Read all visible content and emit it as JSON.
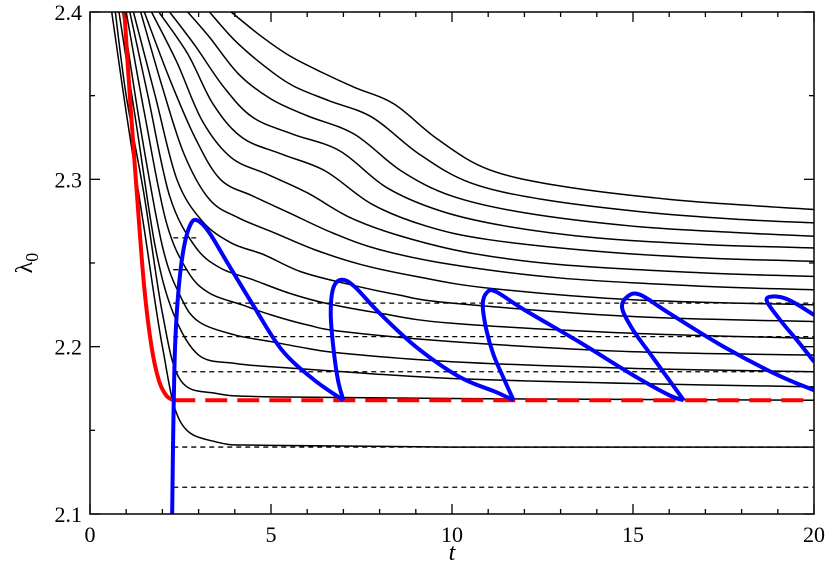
{
  "chart_data": {
    "type": "line",
    "title": "",
    "xlabel": "t",
    "ylabel_main": "λ",
    "ylabel_sub": "0",
    "xlim": [
      0,
      20
    ],
    "ylim": [
      2.1,
      2.4
    ],
    "xticks": [
      0,
      5,
      10,
      15,
      20
    ],
    "yticks": [
      2.1,
      2.2,
      2.3,
      2.4
    ],
    "xtick_labels": [
      "0",
      "5",
      "10",
      "15",
      "20"
    ],
    "ytick_labels": [
      "2.1",
      "2.2",
      "2.3",
      "2.4"
    ],
    "grid": false,
    "colors": {
      "black": "#000000",
      "red": "#ff0000",
      "blue": "#0000ff"
    },
    "black_curves": [
      {
        "points": [
          [
            0.6,
            2.4
          ],
          [
            1.0,
            2.34
          ],
          [
            1.5,
            2.27
          ],
          [
            2.0,
            2.2
          ],
          [
            2.5,
            2.155
          ],
          [
            3.5,
            2.143
          ],
          [
            5,
            2.141
          ],
          [
            10,
            2.14
          ],
          [
            20,
            2.14
          ]
        ]
      },
      {
        "points": [
          [
            0.7,
            2.4
          ],
          [
            1.0,
            2.35
          ],
          [
            1.5,
            2.29
          ],
          [
            2.0,
            2.22
          ],
          [
            2.5,
            2.18
          ],
          [
            3.5,
            2.172
          ],
          [
            5,
            2.17
          ],
          [
            10,
            2.169
          ],
          [
            20,
            2.168
          ]
        ]
      },
      {
        "points": [
          [
            0.8,
            2.4
          ],
          [
            1.3,
            2.33
          ],
          [
            1.8,
            2.26
          ],
          [
            2.3,
            2.22
          ],
          [
            3.0,
            2.195
          ],
          [
            4,
            2.19
          ],
          [
            5,
            2.188
          ],
          [
            7,
            2.185
          ],
          [
            10,
            2.181
          ],
          [
            15,
            2.178
          ],
          [
            20,
            2.176
          ]
        ]
      },
      {
        "points": [
          [
            0.9,
            2.4
          ],
          [
            1.4,
            2.33
          ],
          [
            2.0,
            2.26
          ],
          [
            2.5,
            2.23
          ],
          [
            3.0,
            2.215
          ],
          [
            4,
            2.207
          ],
          [
            5,
            2.203
          ],
          [
            6,
            2.199
          ],
          [
            7,
            2.196
          ],
          [
            10,
            2.191
          ],
          [
            15,
            2.187
          ],
          [
            20,
            2.185
          ]
        ]
      },
      {
        "points": [
          [
            1.0,
            2.4
          ],
          [
            1.5,
            2.34
          ],
          [
            2.1,
            2.275
          ],
          [
            2.7,
            2.245
          ],
          [
            3.3,
            2.232
          ],
          [
            4.2,
            2.225
          ],
          [
            5,
            2.219
          ],
          [
            6,
            2.213
          ],
          [
            7,
            2.209
          ],
          [
            10,
            2.203
          ],
          [
            15,
            2.197
          ],
          [
            20,
            2.195
          ]
        ]
      },
      {
        "points": [
          [
            1.1,
            2.4
          ],
          [
            1.6,
            2.35
          ],
          [
            2.2,
            2.29
          ],
          [
            2.9,
            2.26
          ],
          [
            3.6,
            2.247
          ],
          [
            4.5,
            2.24
          ],
          [
            5.5,
            2.232
          ],
          [
            6.5,
            2.226
          ],
          [
            8,
            2.22
          ],
          [
            10,
            2.214
          ],
          [
            15,
            2.208
          ],
          [
            20,
            2.205
          ]
        ]
      },
      {
        "points": [
          [
            1.2,
            2.4
          ],
          [
            1.8,
            2.35
          ],
          [
            2.4,
            2.3
          ],
          [
            3.1,
            2.275
          ],
          [
            3.9,
            2.262
          ],
          [
            4.8,
            2.255
          ],
          [
            5.8,
            2.245
          ],
          [
            7,
            2.238
          ],
          [
            8.5,
            2.231
          ],
          [
            10,
            2.226
          ],
          [
            15,
            2.218
          ],
          [
            20,
            2.215
          ]
        ]
      },
      {
        "points": [
          [
            1.4,
            2.4
          ],
          [
            2.0,
            2.355
          ],
          [
            2.6,
            2.315
          ],
          [
            3.3,
            2.288
          ],
          [
            4.1,
            2.277
          ],
          [
            5.1,
            2.268
          ],
          [
            6.2,
            2.258
          ],
          [
            7.5,
            2.249
          ],
          [
            9,
            2.242
          ],
          [
            11,
            2.235
          ],
          [
            15,
            2.228
          ],
          [
            20,
            2.225
          ]
        ]
      },
      {
        "points": [
          [
            1.5,
            2.4
          ],
          [
            2.2,
            2.36
          ],
          [
            2.9,
            2.325
          ],
          [
            3.6,
            2.3
          ],
          [
            4.5,
            2.29
          ],
          [
            5.5,
            2.28
          ],
          [
            6.7,
            2.268
          ],
          [
            8,
            2.258
          ],
          [
            10,
            2.249
          ],
          [
            13,
            2.241
          ],
          [
            17,
            2.236
          ],
          [
            20,
            2.234
          ]
        ]
      },
      {
        "points": [
          [
            1.7,
            2.4
          ],
          [
            2.4,
            2.37
          ],
          [
            3.1,
            2.335
          ],
          [
            3.9,
            2.313
          ],
          [
            4.9,
            2.303
          ],
          [
            6.0,
            2.292
          ],
          [
            7.2,
            2.277
          ],
          [
            8.6,
            2.266
          ],
          [
            10.5,
            2.256
          ],
          [
            13,
            2.249
          ],
          [
            17,
            2.244
          ],
          [
            20,
            2.242
          ]
        ]
      },
      {
        "points": [
          [
            1.9,
            2.4
          ],
          [
            2.7,
            2.375
          ],
          [
            3.4,
            2.345
          ],
          [
            4.2,
            2.325
          ],
          [
            5.3,
            2.315
          ],
          [
            6.5,
            2.305
          ],
          [
            7.8,
            2.285
          ],
          [
            9.3,
            2.272
          ],
          [
            11,
            2.264
          ],
          [
            14,
            2.257
          ],
          [
            17,
            2.253
          ],
          [
            20,
            2.251
          ]
        ]
      },
      {
        "points": [
          [
            2.2,
            2.4
          ],
          [
            2.9,
            2.38
          ],
          [
            3.7,
            2.355
          ],
          [
            4.5,
            2.337
          ],
          [
            5.6,
            2.327
          ],
          [
            6.9,
            2.317
          ],
          [
            8.2,
            2.295
          ],
          [
            9.7,
            2.281
          ],
          [
            11.5,
            2.272
          ],
          [
            14,
            2.265
          ],
          [
            17,
            2.261
          ],
          [
            20,
            2.259
          ]
        ]
      },
      {
        "points": [
          [
            2.7,
            2.4
          ],
          [
            3.3,
            2.385
          ],
          [
            4.1,
            2.363
          ],
          [
            5.0,
            2.348
          ],
          [
            6.0,
            2.338
          ],
          [
            7.3,
            2.327
          ],
          [
            8.6,
            2.305
          ],
          [
            10,
            2.29
          ],
          [
            12,
            2.28
          ],
          [
            15,
            2.272
          ],
          [
            18,
            2.268
          ],
          [
            20,
            2.266
          ]
        ]
      },
      {
        "points": [
          [
            3.3,
            2.4
          ],
          [
            4.0,
            2.383
          ],
          [
            4.8,
            2.368
          ],
          [
            5.6,
            2.356
          ],
          [
            6.6,
            2.347
          ],
          [
            7.8,
            2.337
          ],
          [
            9.1,
            2.315
          ],
          [
            10.5,
            2.298
          ],
          [
            12.5,
            2.288
          ],
          [
            15.5,
            2.28
          ],
          [
            18,
            2.276
          ],
          [
            20,
            2.274
          ]
        ]
      },
      {
        "points": [
          [
            3.9,
            2.4
          ],
          [
            4.7,
            2.386
          ],
          [
            5.5,
            2.374
          ],
          [
            6.4,
            2.364
          ],
          [
            7.3,
            2.355
          ],
          [
            8.4,
            2.345
          ],
          [
            9.6,
            2.324
          ],
          [
            11,
            2.306
          ],
          [
            13,
            2.296
          ],
          [
            16,
            2.288
          ],
          [
            18.5,
            2.284
          ],
          [
            20,
            2.282
          ]
        ]
      }
    ],
    "dashed_levels": [
      {
        "y": 2.116,
        "x_start": 2.3,
        "x_end": 20
      },
      {
        "y": 2.14,
        "x_start": 2.3,
        "x_end": 20
      },
      {
        "y": 2.185,
        "x_start": 2.3,
        "x_end": 20
      },
      {
        "y": 2.206,
        "x_start": 2.3,
        "x_end": 20
      },
      {
        "y": 2.226,
        "x_start": 2.3,
        "x_end": 20
      },
      {
        "y": 2.246,
        "x_start": 2.3,
        "x_end": 3.0
      },
      {
        "y": 2.265,
        "x_start": 2.3,
        "x_end": 3.0
      }
    ],
    "red_solid": {
      "points": [
        [
          0.95,
          2.4
        ],
        [
          1.1,
          2.35
        ],
        [
          1.3,
          2.29
        ],
        [
          1.5,
          2.235
        ],
        [
          1.7,
          2.2
        ],
        [
          1.9,
          2.18
        ],
        [
          2.1,
          2.171
        ],
        [
          2.3,
          2.168
        ]
      ]
    },
    "red_dashed": {
      "y": 2.168,
      "x_start": 2.3,
      "x_end": 20
    },
    "blue_curves": [
      {
        "points": [
          [
            2.27,
            2.1
          ],
          [
            2.3,
            2.15
          ],
          [
            2.35,
            2.2
          ],
          [
            2.45,
            2.235
          ],
          [
            2.6,
            2.26
          ],
          [
            2.8,
            2.274
          ],
          [
            3.0,
            2.275
          ],
          [
            3.3,
            2.268
          ],
          [
            3.8,
            2.25
          ],
          [
            4.5,
            2.225
          ],
          [
            5.3,
            2.198
          ],
          [
            6.2,
            2.18
          ],
          [
            7.0,
            2.168
          ]
        ]
      },
      {
        "points": [
          [
            7.0,
            2.168
          ],
          [
            6.85,
            2.18
          ],
          [
            6.72,
            2.2
          ],
          [
            6.65,
            2.22
          ],
          [
            6.72,
            2.235
          ],
          [
            6.95,
            2.24
          ],
          [
            7.3,
            2.236
          ],
          [
            8.0,
            2.22
          ],
          [
            9.0,
            2.2
          ],
          [
            10.2,
            2.182
          ],
          [
            11.2,
            2.173
          ],
          [
            11.7,
            2.168
          ]
        ]
      },
      {
        "points": [
          [
            11.7,
            2.168
          ],
          [
            11.45,
            2.18
          ],
          [
            11.15,
            2.195
          ],
          [
            10.95,
            2.21
          ],
          [
            10.85,
            2.225
          ],
          [
            10.95,
            2.232
          ],
          [
            11.2,
            2.233
          ],
          [
            12.0,
            2.222
          ],
          [
            13.5,
            2.203
          ],
          [
            15.0,
            2.183
          ],
          [
            16.0,
            2.171
          ],
          [
            16.4,
            2.168
          ]
        ]
      },
      {
        "points": [
          [
            16.4,
            2.168
          ],
          [
            16.0,
            2.18
          ],
          [
            15.5,
            2.195
          ],
          [
            15.0,
            2.21
          ],
          [
            14.7,
            2.223
          ],
          [
            14.85,
            2.23
          ],
          [
            15.2,
            2.231
          ],
          [
            16.0,
            2.22
          ],
          [
            17.5,
            2.2
          ],
          [
            19.0,
            2.183
          ],
          [
            20.0,
            2.174
          ]
        ]
      },
      {
        "points": [
          [
            20.0,
            2.191
          ],
          [
            19.6,
            2.202
          ],
          [
            19.1,
            2.215
          ],
          [
            18.7,
            2.227
          ],
          [
            18.85,
            2.23
          ],
          [
            19.3,
            2.228
          ],
          [
            20.0,
            2.219
          ]
        ]
      }
    ]
  }
}
